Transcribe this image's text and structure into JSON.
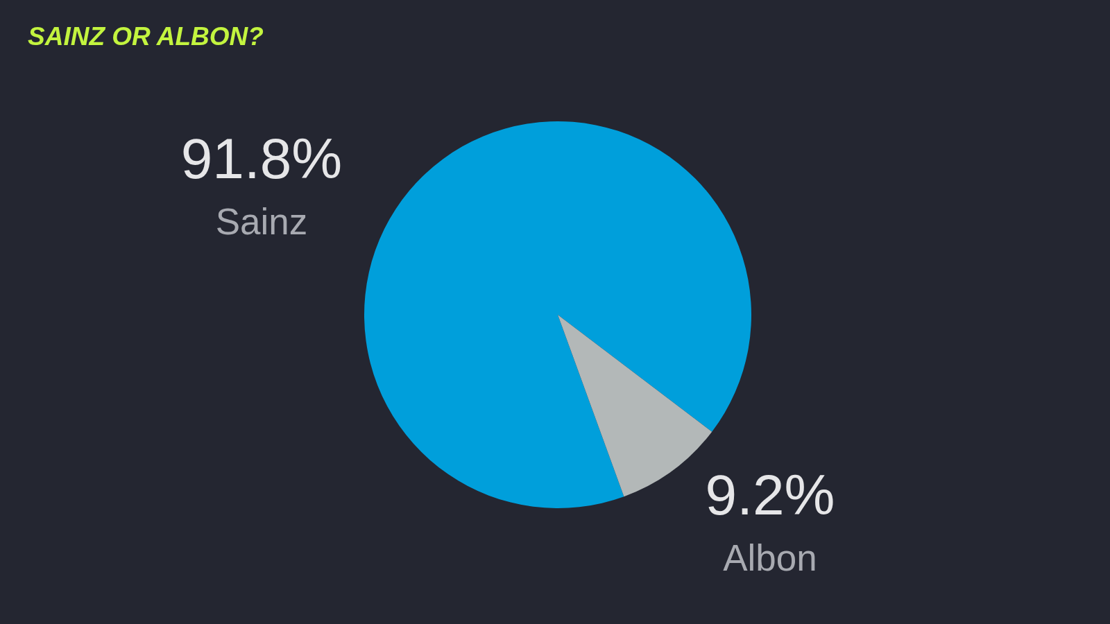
{
  "chart_data": {
    "type": "pie",
    "title": "SAINZ OR ALBON?",
    "categories": [
      "Sainz",
      "Albon"
    ],
    "values": [
      91.8,
      9.2
    ],
    "colors": [
      "#009fdb",
      "#b3b8b8"
    ],
    "value_labels": [
      "91.8%",
      "9.2%"
    ]
  }
}
